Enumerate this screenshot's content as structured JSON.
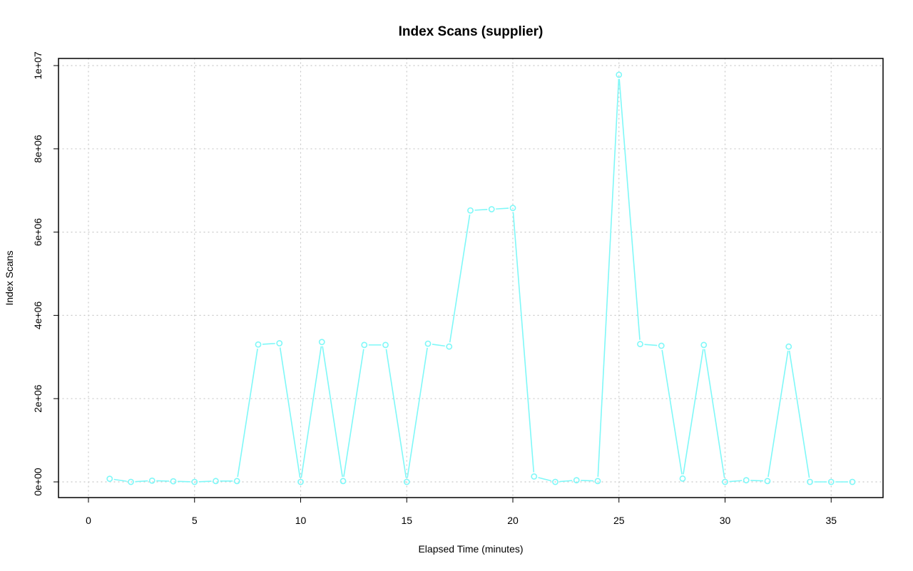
{
  "chart_data": {
    "type": "line",
    "title": "Index Scans (supplier)",
    "xlabel": "Elapsed Time (minutes)",
    "ylabel": "Index Scans",
    "xlim": [
      0,
      36
    ],
    "ylim": [
      0,
      10000000
    ],
    "grid": true,
    "legend": "none",
    "xticks": [
      0,
      5,
      10,
      15,
      20,
      25,
      30,
      35
    ],
    "xtick_labels": [
      "0",
      "5",
      "10",
      "15",
      "20",
      "25",
      "30",
      "35"
    ],
    "yticks": [
      0,
      2000000,
      4000000,
      6000000,
      8000000,
      10000000
    ],
    "ytick_labels": [
      "0e+00",
      "2e+06",
      "4e+06",
      "6e+06",
      "8e+06",
      "1e+07"
    ],
    "series": [
      {
        "color": "#7ff8f8",
        "x": [
          1,
          2,
          3,
          4,
          5,
          6,
          7,
          8,
          9,
          10,
          11,
          12,
          13,
          14,
          15,
          16,
          17,
          18,
          19,
          20,
          21,
          22,
          23,
          24,
          25,
          26,
          27,
          28,
          29,
          30,
          31,
          32,
          33,
          34,
          35,
          36
        ],
        "y": [
          75000,
          0,
          30000,
          15000,
          0,
          20000,
          20000,
          3300000,
          3330000,
          0,
          3360000,
          20000,
          3290000,
          3290000,
          0,
          3320000,
          3250000,
          6520000,
          6550000,
          6580000,
          130000,
          0,
          40000,
          20000,
          9780000,
          3310000,
          3270000,
          80000,
          3290000,
          0,
          40000,
          20000,
          3250000,
          0,
          0,
          0
        ]
      }
    ]
  }
}
